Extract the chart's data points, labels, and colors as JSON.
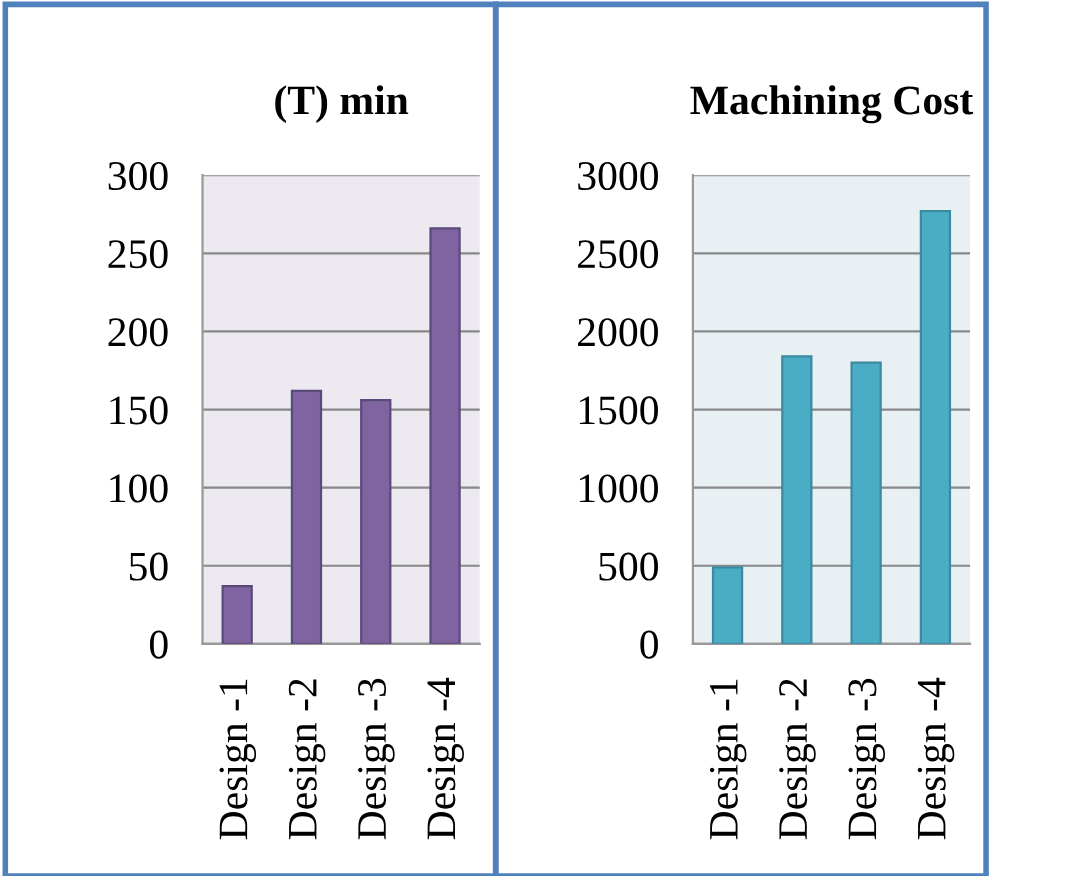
{
  "chart_data": [
    {
      "type": "bar",
      "title": "(T) min",
      "categories": [
        "Design -1",
        "Design -2",
        "Design -3",
        "Design -4"
      ],
      "values": [
        37,
        162,
        156,
        266
      ],
      "color": "#8064a2",
      "ylim": [
        0,
        300
      ],
      "yticks": [
        0,
        50,
        100,
        150,
        200,
        250,
        300
      ],
      "grid": "y"
    },
    {
      "type": "bar",
      "title": "Machining Cost",
      "categories": [
        "Design -1",
        "Design -2",
        "Design -3",
        "Design -4"
      ],
      "values": [
        490,
        1840,
        1800,
        2770
      ],
      "color": "#4bacc6",
      "ylim": [
        0,
        3000
      ],
      "yticks": [
        0,
        500,
        1000,
        1500,
        2000,
        2500,
        3000
      ],
      "grid": "y"
    }
  ]
}
